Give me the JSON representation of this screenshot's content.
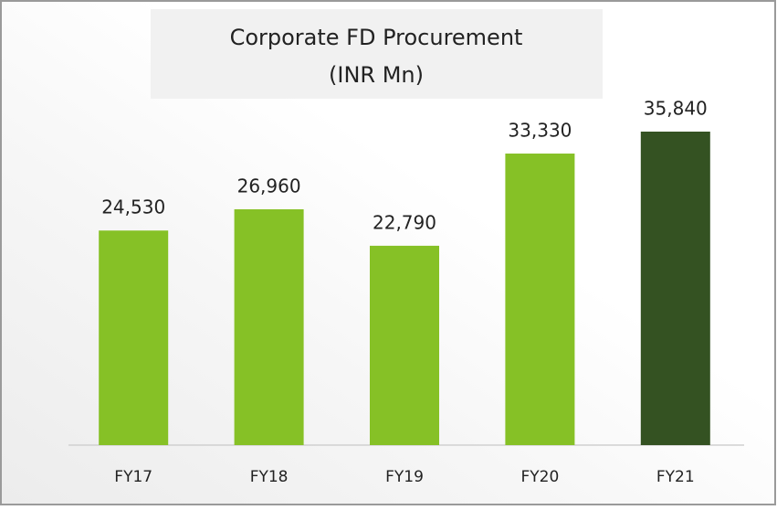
{
  "chart_data": {
    "type": "bar",
    "title": "Corporate FD Procurement",
    "subtitle": "(INR Mn)",
    "categories": [
      "FY17",
      "FY18",
      "FY19",
      "FY20",
      "FY21"
    ],
    "values": [
      24530,
      26960,
      22790,
      33330,
      35840
    ],
    "value_labels": [
      "24,530",
      "26,960",
      "22,790",
      "33,330",
      "35,840"
    ],
    "colors": [
      "#86c126",
      "#86c126",
      "#86c126",
      "#86c126",
      "#345222"
    ]
  }
}
